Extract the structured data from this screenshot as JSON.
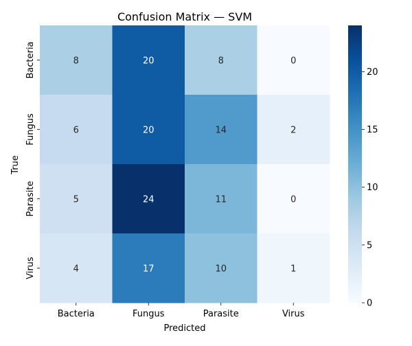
{
  "chart_data": {
    "type": "heatmap",
    "title": "Confusion Matrix — SVM",
    "xlabel": "Predicted",
    "ylabel": "True",
    "x_categories": [
      "Bacteria",
      "Fungus",
      "Parasite",
      "Virus"
    ],
    "y_categories": [
      "Bacteria",
      "Fungus",
      "Parasite",
      "Virus"
    ],
    "values": [
      [
        8,
        20,
        8,
        0
      ],
      [
        6,
        20,
        14,
        2
      ],
      [
        5,
        24,
        11,
        0
      ],
      [
        4,
        17,
        10,
        1
      ]
    ],
    "colorbar": {
      "min": 0,
      "max": 24,
      "ticks": [
        0,
        5,
        10,
        15,
        20
      ]
    },
    "colormap": "Blues",
    "annotations": true,
    "grid": false
  }
}
